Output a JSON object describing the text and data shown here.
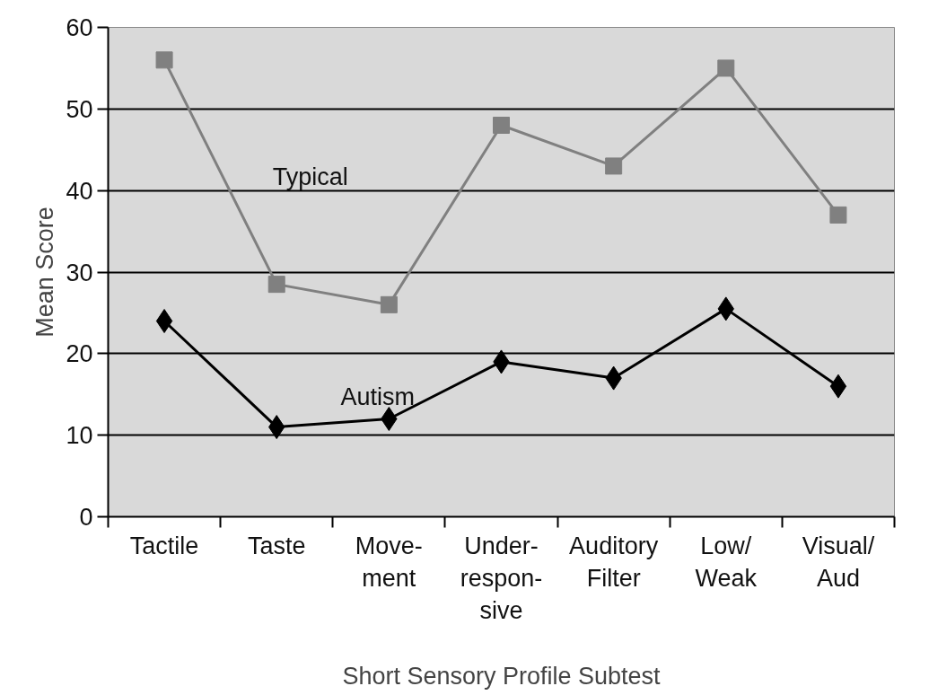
{
  "chart_data": {
    "type": "line",
    "xlabel": "Short Sensory Profile Subtest",
    "ylabel": "Mean Score",
    "categories": [
      "Tactile",
      "Taste",
      "Move-\nment",
      "Under-\nrespon-\nsive",
      "Auditory\nFilter",
      "Low/\nWeak",
      "Visual/\nAud"
    ],
    "series": [
      {
        "name": "Typical",
        "color": "#808080",
        "marker": "square",
        "values": [
          56,
          28.5,
          26,
          48,
          43,
          55,
          37
        ]
      },
      {
        "name": "Autism",
        "color": "#000000",
        "marker": "diamond",
        "values": [
          24,
          11,
          12,
          19,
          17,
          25.5,
          16
        ]
      }
    ],
    "ylim": [
      0,
      60
    ],
    "yticks": [
      0,
      10,
      20,
      30,
      40,
      50,
      60
    ],
    "grid": "y"
  }
}
